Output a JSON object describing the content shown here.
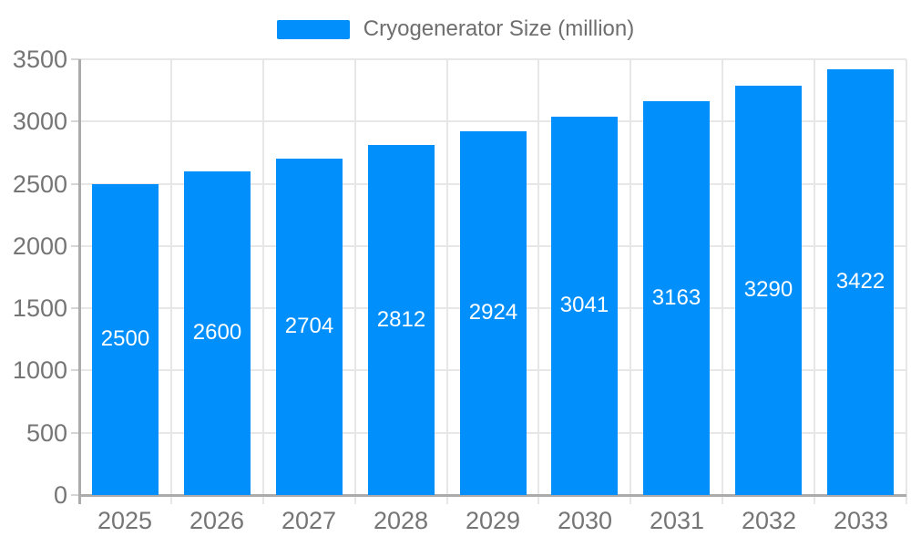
{
  "colors": {
    "bar": "#008ffb",
    "grid": "#e7e7e7",
    "axis_line": "#ababab",
    "tick": "#d6d6d6",
    "axis_text": "#757575",
    "legend_text": "#6e6e6e",
    "data_label_text": "#ffffff",
    "background": "#ffffff"
  },
  "chart_data": {
    "type": "bar",
    "title": "",
    "legend_label": "Cryogenerator Size (million)",
    "legend_position": "top",
    "grid": true,
    "data_labels": true,
    "categories": [
      "2025",
      "2026",
      "2027",
      "2028",
      "2029",
      "2030",
      "2031",
      "2032",
      "2033"
    ],
    "series": [
      {
        "name": "Cryogenerator Size (million)",
        "values": [
          2500,
          2600,
          2704,
          2812,
          2924,
          3041,
          3163,
          3290,
          3422
        ]
      }
    ],
    "xlabel": "",
    "ylabel": "",
    "ylim": [
      0,
      3500
    ],
    "y_ticks": [
      0,
      500,
      1000,
      1500,
      2000,
      2500,
      3000,
      3500
    ]
  }
}
